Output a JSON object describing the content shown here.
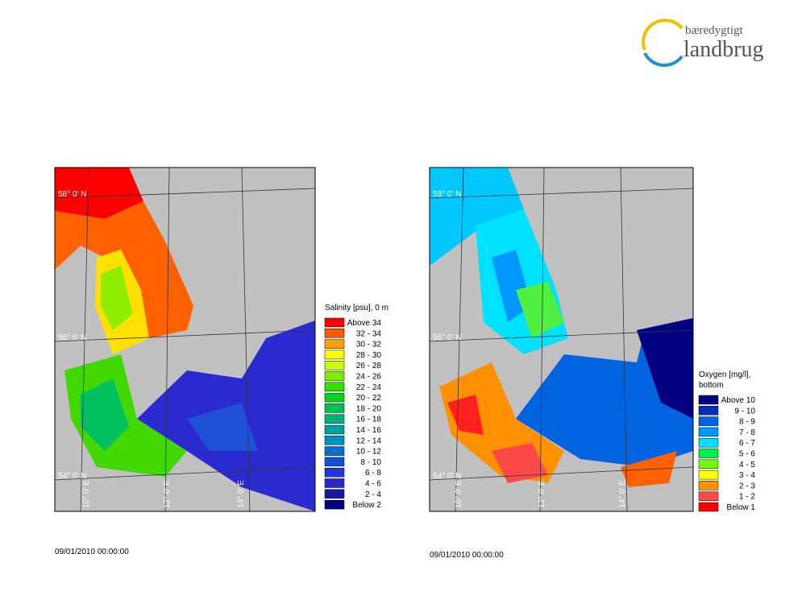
{
  "logo": {
    "line1": "bæredygtigt",
    "line2": "landbrug"
  },
  "maps": [
    {
      "legend": {
        "title": [
          "Salinity [psu], 0 m"
        ],
        "items": [
          {
            "label": "Above 34",
            "color": "#ff0000"
          },
          {
            "label": "32 - 34",
            "color": "#ff5a00"
          },
          {
            "label": "30 - 32",
            "color": "#ffa000"
          },
          {
            "label": "28 - 30",
            "color": "#ffff00"
          },
          {
            "label": "26 - 28",
            "color": "#c8ff00"
          },
          {
            "label": "24 - 26",
            "color": "#78f000"
          },
          {
            "label": "22 - 24",
            "color": "#32e000"
          },
          {
            "label": "20 - 22",
            "color": "#00d21e"
          },
          {
            "label": "18 - 20",
            "color": "#00c050"
          },
          {
            "label": "16 - 18",
            "color": "#00b078"
          },
          {
            "label": "14 - 16",
            "color": "#00a0a0"
          },
          {
            "label": "12 - 14",
            "color": "#0090c0"
          },
          {
            "label": "10 - 12",
            "color": "#0070d0"
          },
          {
            "label": "8 - 10",
            "color": "#1450d8"
          },
          {
            "label": "6 - 8",
            "color": "#2038d8"
          },
          {
            "label": "4 - 6",
            "color": "#2828c8"
          },
          {
            "label": "2 - 4",
            "color": "#1818a8"
          },
          {
            "label": "Below 2",
            "color": "#000080"
          }
        ]
      },
      "lat_labels": [
        "58° 0' N",
        "56° 0' N",
        "54° 0' N"
      ],
      "lon_labels": [
        "10° 0' E",
        "12° 0' E",
        "14° 0' E"
      ],
      "timestamp": "09/01/2010 00:00:00"
    },
    {
      "legend": {
        "title": [
          "Oxygen [mg/l],",
          "bottom"
        ],
        "items": [
          {
            "label": "Above 10",
            "color": "#000080"
          },
          {
            "label": "9 - 10",
            "color": "#0030b8"
          },
          {
            "label": "8 - 9",
            "color": "#0064e0"
          },
          {
            "label": "7 - 8",
            "color": "#0098ff"
          },
          {
            "label": "6 - 7",
            "color": "#00e0ff"
          },
          {
            "label": "5 - 6",
            "color": "#00f050"
          },
          {
            "label": "4 - 5",
            "color": "#70ff00"
          },
          {
            "label": "3 - 4",
            "color": "#ffff00"
          },
          {
            "label": "2 - 3",
            "color": "#ff9000"
          },
          {
            "label": "1 - 2",
            "color": "#ff4848"
          },
          {
            "label": "Below 1",
            "color": "#ff0000"
          }
        ]
      },
      "lat_labels": [
        "58° 0' N",
        "56° 0' N",
        "54° 0' N"
      ],
      "lon_labels": [
        "10° 0' E",
        "12° 0' E",
        "14° 0' E"
      ],
      "timestamp": "09/01/2010 00:00:00"
    }
  ]
}
